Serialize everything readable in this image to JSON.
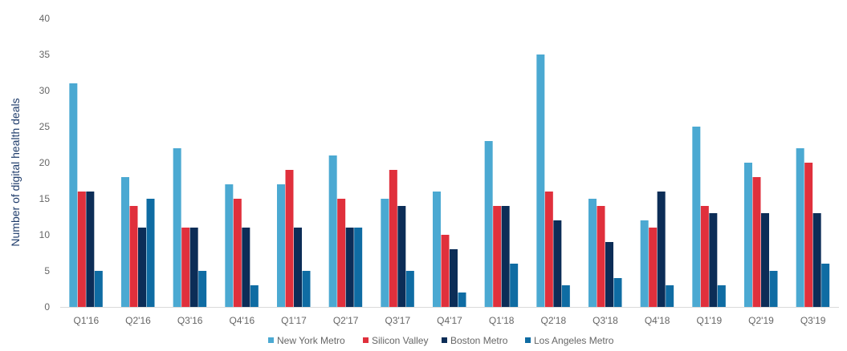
{
  "chart_data": {
    "type": "bar",
    "title": "",
    "xlabel": "",
    "ylabel": "Number of digital health deals",
    "ylim": [
      0,
      40
    ],
    "yticks": [
      0,
      5,
      10,
      15,
      20,
      25,
      30,
      35,
      40
    ],
    "grid": false,
    "legend_position": "bottom",
    "categories": [
      "Q1'16",
      "Q2'16",
      "Q3'16",
      "Q4'16",
      "Q1'17",
      "Q2'17",
      "Q3'17",
      "Q4'17",
      "Q1'18",
      "Q2'18",
      "Q3'18",
      "Q4'18",
      "Q1'19",
      "Q2'19",
      "Q3'19"
    ],
    "series": [
      {
        "name": "New York Metro",
        "color": "#4ba9d2",
        "values": [
          31,
          18,
          22,
          17,
          17,
          21,
          15,
          16,
          23,
          35,
          15,
          12,
          25,
          20,
          22
        ]
      },
      {
        "name": "Silicon Valley",
        "color": "#e0303c",
        "values": [
          16,
          14,
          11,
          15,
          19,
          15,
          19,
          10,
          14,
          16,
          14,
          11,
          14,
          18,
          20
        ]
      },
      {
        "name": "Boston Metro",
        "color": "#0c2d57",
        "values": [
          16,
          11,
          11,
          11,
          11,
          11,
          14,
          8,
          14,
          12,
          9,
          16,
          13,
          13,
          13
        ]
      },
      {
        "name": "Los Angeles Metro",
        "color": "#0f6ca3",
        "values": [
          5,
          15,
          5,
          3,
          5,
          11,
          5,
          2,
          6,
          3,
          4,
          3,
          3,
          5,
          6
        ]
      }
    ]
  }
}
